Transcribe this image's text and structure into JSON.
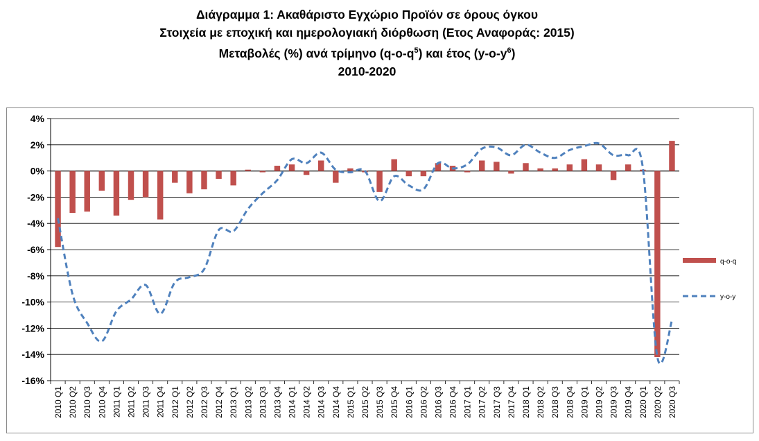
{
  "titles": {
    "line1": "Διάγραμμα 1: Ακαθάριστο Εγχώριο Προϊόν σε όρους όγκου",
    "line2": "Στοιχεία με εποχική και ημερολογιακή διόρθωση (Ετος Αναφοράς: 2015)",
    "line3_a": "Μεταβολές (%) ανά τρίμηνο (q-o-q",
    "line3_sup1": "5",
    "line3_b": ") και έτος (y-o-y",
    "line3_sup2": "6",
    "line3_c": ")",
    "line4": "2010-2020"
  },
  "colors": {
    "bar": "#c0504d",
    "line": "#4f81bd",
    "grid": "#000000"
  },
  "chart_data": {
    "type": "bar",
    "title": "",
    "xlabel": "",
    "ylabel": "",
    "ylim": [
      -16,
      4
    ],
    "yticks": [
      4,
      2,
      0,
      -2,
      -4,
      -6,
      -8,
      -10,
      -12,
      -14,
      -16
    ],
    "ytick_labels": [
      "4%",
      "2%",
      "0%",
      "-2%",
      "-4%",
      "-6%",
      "-8%",
      "-10%",
      "-12%",
      "-14%",
      "-16%"
    ],
    "grid": true,
    "legend_position": "right",
    "categories": [
      "2010 Q1",
      "2010 Q2",
      "2010 Q3",
      "2010 Q4",
      "2011 Q1",
      "2011 Q2",
      "2011 Q3",
      "2011 Q4",
      "2012 Q1",
      "2012 Q2",
      "2012 Q3",
      "2012 Q4",
      "2013 Q1",
      "2013 Q2",
      "2013 Q3",
      "2013 Q4",
      "2014 Q1",
      "2014 Q2",
      "2014 Q3",
      "2014 Q4",
      "2015 Q1",
      "2015 Q2",
      "2015 Q3",
      "2015 Q4",
      "2016 Q1",
      "2016 Q2",
      "2016 Q3",
      "2016 Q4",
      "2017 Q1",
      "2017 Q2",
      "2017 Q3",
      "2017 Q4",
      "2018 Q1",
      "2018 Q2",
      "2018 Q3",
      "2018 Q4",
      "2019 Q1",
      "2019 Q2",
      "2019 Q3",
      "2019 Q4",
      "2020 Q1",
      "2020 Q2",
      "2020 Q3"
    ],
    "series": [
      {
        "name": "q-o-q",
        "kind": "bar",
        "values": [
          -5.8,
          -3.2,
          -3.1,
          -1.5,
          -3.4,
          -2.2,
          -2.0,
          -3.7,
          -0.9,
          -1.7,
          -1.4,
          -0.6,
          -1.1,
          0.1,
          -0.1,
          0.4,
          0.5,
          -0.3,
          0.8,
          -0.9,
          0.2,
          -0.1,
          -1.6,
          0.9,
          -0.4,
          -0.4,
          0.6,
          0.4,
          -0.1,
          0.8,
          0.7,
          -0.2,
          0.6,
          0.2,
          0.2,
          0.5,
          0.9,
          0.5,
          -0.7,
          0.5,
          0.1,
          -14.2,
          2.3
        ]
      },
      {
        "name": "y-o-y",
        "kind": "dashed-line",
        "values": [
          -3.6,
          -9.4,
          -11.6,
          -13.0,
          -10.7,
          -9.8,
          -8.7,
          -10.9,
          -8.5,
          -8.1,
          -7.5,
          -4.5,
          -4.6,
          -2.9,
          -1.7,
          -0.7,
          0.9,
          0.6,
          1.4,
          0.1,
          -0.1,
          0.0,
          -2.3,
          -0.4,
          -1.1,
          -1.4,
          0.6,
          0.2,
          0.5,
          1.7,
          1.8,
          1.2,
          2.0,
          1.4,
          1.0,
          1.6,
          1.9,
          2.1,
          1.2,
          1.2,
          0.3,
          -14.2,
          -11.4
        ]
      }
    ]
  }
}
